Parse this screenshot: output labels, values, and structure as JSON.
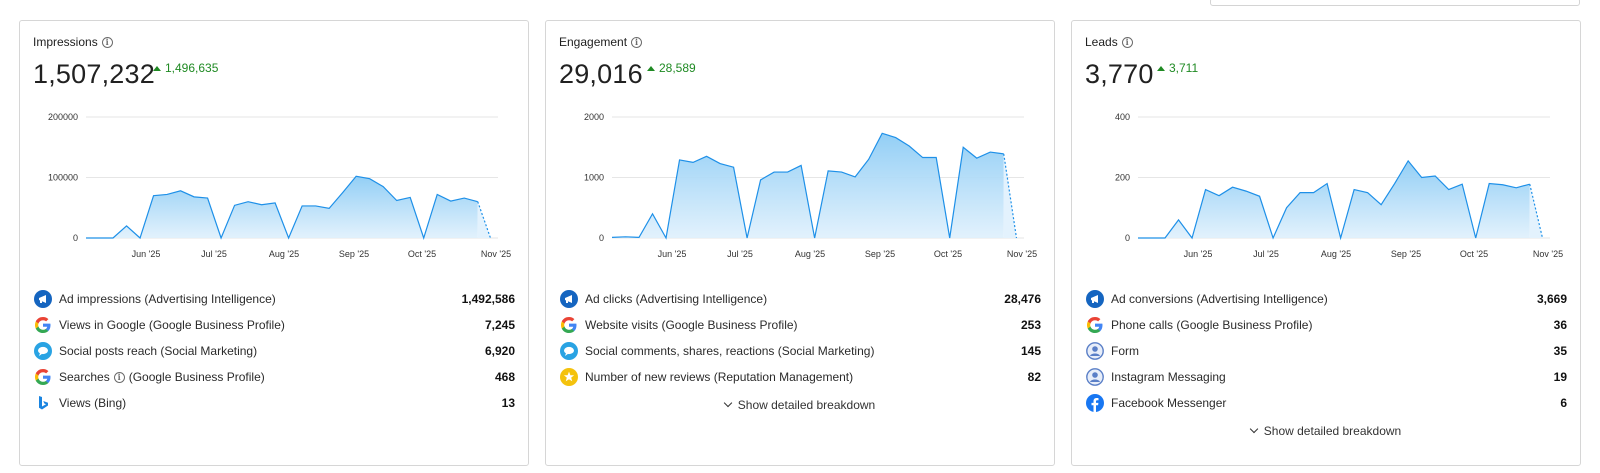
{
  "cards": [
    {
      "title": "Impressions",
      "total": "1,507,232",
      "delta": "1,496,635",
      "chart_data": {
        "type": "area",
        "yticks": [
          "200000",
          "100000",
          "0"
        ],
        "ylim": [
          0,
          200000
        ],
        "xticks": [
          "Jun '25",
          "Jul '25",
          "Aug '25",
          "Sep '25",
          "Oct '25",
          "Nov '25"
        ],
        "values": [
          0,
          0,
          0,
          20000,
          0,
          70000,
          72000,
          78000,
          68000,
          66000,
          0,
          54000,
          60000,
          55000,
          58000,
          0,
          53000,
          53000,
          49000,
          75000,
          102000,
          98000,
          85000,
          62000,
          67000,
          0,
          72000,
          61000,
          66000,
          60000
        ],
        "forecast": [
          60000,
          0
        ]
      },
      "rows": [
        {
          "icon": "ad-intelligence-icon",
          "label": "Ad impressions (Advertising Intelligence)",
          "value": "1,492,586"
        },
        {
          "icon": "google-icon",
          "label": "Views in Google (Google Business Profile)",
          "value": "7,245"
        },
        {
          "icon": "social-marketing-icon",
          "label": "Social posts reach (Social Marketing)",
          "value": "6,920"
        },
        {
          "icon": "google-icon",
          "label": "Searches",
          "label_suffix": "(Google Business Profile)",
          "value": "468"
        },
        {
          "icon": "bing-icon",
          "label": "Views (Bing)",
          "value": "13"
        }
      ]
    },
    {
      "title": "Engagement",
      "total": "29,016",
      "delta": "28,589",
      "chart_data": {
        "type": "area",
        "yticks": [
          "2000",
          "1000",
          "0"
        ],
        "ylim": [
          0,
          2000
        ],
        "xticks": [
          "Jun '25",
          "Jul '25",
          "Aug '25",
          "Sep '25",
          "Oct '25",
          "Nov '25"
        ],
        "values": [
          10,
          20,
          10,
          400,
          0,
          1290,
          1250,
          1350,
          1230,
          1170,
          0,
          960,
          1090,
          1090,
          1200,
          0,
          1110,
          1090,
          1010,
          1300,
          1730,
          1660,
          1520,
          1330,
          1330,
          0,
          1500,
          1320,
          1420,
          1390
        ],
        "forecast": [
          1390,
          0
        ]
      },
      "rows": [
        {
          "icon": "ad-intelligence-icon",
          "label": "Ad clicks (Advertising Intelligence)",
          "value": "28,476"
        },
        {
          "icon": "google-icon",
          "label": "Website visits (Google Business Profile)",
          "value": "253"
        },
        {
          "icon": "social-marketing-icon",
          "label": "Social comments, shares, reactions (Social Marketing)",
          "value": "145"
        },
        {
          "icon": "star-icon",
          "label": "Number of new reviews (Reputation Management)",
          "value": "82"
        }
      ],
      "breakdown": "Show detailed breakdown"
    },
    {
      "title": "Leads",
      "total": "3,770",
      "delta": "3,711",
      "chart_data": {
        "type": "area",
        "yticks": [
          "400",
          "200",
          "0"
        ],
        "ylim": [
          0,
          400
        ],
        "xticks": [
          "Jun '25",
          "Jul '25",
          "Aug '25",
          "Sep '25",
          "Oct '25",
          "Nov '25"
        ],
        "values": [
          0,
          0,
          0,
          60,
          0,
          160,
          140,
          168,
          155,
          138,
          0,
          100,
          150,
          150,
          180,
          0,
          160,
          150,
          110,
          180,
          255,
          200,
          205,
          160,
          178,
          0,
          180,
          176,
          166,
          178
        ],
        "forecast": [
          178,
          0
        ]
      },
      "rows": [
        {
          "icon": "ad-intelligence-icon",
          "label": "Ad conversions (Advertising Intelligence)",
          "value": "3,669"
        },
        {
          "icon": "google-icon",
          "label": "Phone calls (Google Business Profile)",
          "value": "36"
        },
        {
          "icon": "user-icon",
          "label": "Form",
          "value": "35"
        },
        {
          "icon": "user-icon",
          "label": "Instagram Messaging",
          "value": "19"
        },
        {
          "icon": "facebook-icon",
          "label": "Facebook Messenger",
          "value": "6"
        }
      ],
      "breakdown": "Show detailed breakdown"
    }
  ],
  "colors": {
    "accent": "#1e90e8",
    "fill": "#8dccf5",
    "positive": "#1f8a23"
  }
}
